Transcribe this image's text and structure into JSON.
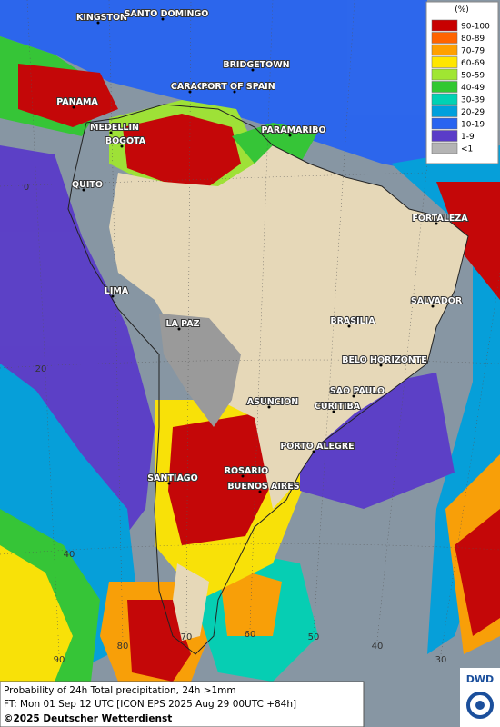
{
  "legend": {
    "title": "(%)",
    "items": [
      {
        "label": "90-100",
        "color": "#c80000"
      },
      {
        "label": "80-89",
        "color": "#ff6400"
      },
      {
        "label": "70-79",
        "color": "#ffa000"
      },
      {
        "label": "60-69",
        "color": "#ffe600"
      },
      {
        "label": "50-59",
        "color": "#a0e632"
      },
      {
        "label": "40-49",
        "color": "#32c832"
      },
      {
        "label": "30-39",
        "color": "#00d2b4"
      },
      {
        "label": "20-29",
        "color": "#00a0dc"
      },
      {
        "label": "10-19",
        "color": "#2864f0"
      },
      {
        "label": "1-9",
        "color": "#5a3cc8"
      },
      {
        "label": "<1",
        "color": "#b4b4b4"
      }
    ]
  },
  "cities": [
    "KINGSTON",
    "SANTO DOMINGO",
    "BRIDGETOWN",
    "CARACAS",
    "PORT OF SPAIN",
    "PANAMA",
    "MEDELLIN",
    "BOGOTA",
    "PARAMARIBO",
    "QUITO",
    "FORTALEZA",
    "LIMA",
    "SALVADOR",
    "BRASILIA",
    "LA PAZ",
    "BELO HORIZONTE",
    "SAO PAULO",
    "ASUNCION",
    "CURITIBA",
    "PORTO ALEGRE",
    "ROSARIO",
    "SANTIAGO",
    "BUENOS AIRES"
  ],
  "latitude_labels": [
    "0",
    "20",
    "40"
  ],
  "longitude_labels": [
    "90",
    "80",
    "70",
    "60",
    "50",
    "40",
    "30"
  ],
  "footer": {
    "line1": "Probability of 24h Total precipitation, 24h >1mm",
    "line2": "FT: Mon 01 Sep 12 UTC [ICON EPS 2025 Aug 29 00UTC +84h]",
    "line3": "©2025 Deutscher Wetterdienst"
  },
  "logo": "DWD"
}
